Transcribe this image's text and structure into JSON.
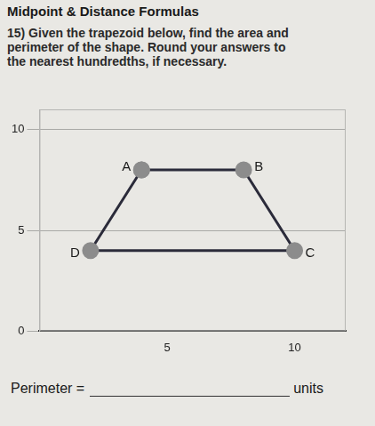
{
  "header": {
    "title": "Midpoint & Distance Formulas",
    "question": "15) Given the trapezoid below, find the area and perimeter of the shape. Round your answers to the nearest hundredths, if necessary."
  },
  "chart_data": {
    "type": "scatter",
    "series": [
      {
        "name": "trapezoid",
        "color": "#2b2b3a",
        "point_labels": [
          "A",
          "B",
          "C",
          "D"
        ],
        "x": [
          4,
          8,
          10,
          2
        ],
        "y": [
          8,
          8,
          4,
          4
        ],
        "marker": "circle",
        "line_style": "solid"
      }
    ],
    "xlim": [
      0,
      12
    ],
    "ylim": [
      0,
      11
    ],
    "xticks": [
      5,
      10
    ],
    "yticks": [
      0,
      5,
      10
    ],
    "grid": true
  },
  "answer": {
    "label": "Perimeter =",
    "unit": "units"
  }
}
